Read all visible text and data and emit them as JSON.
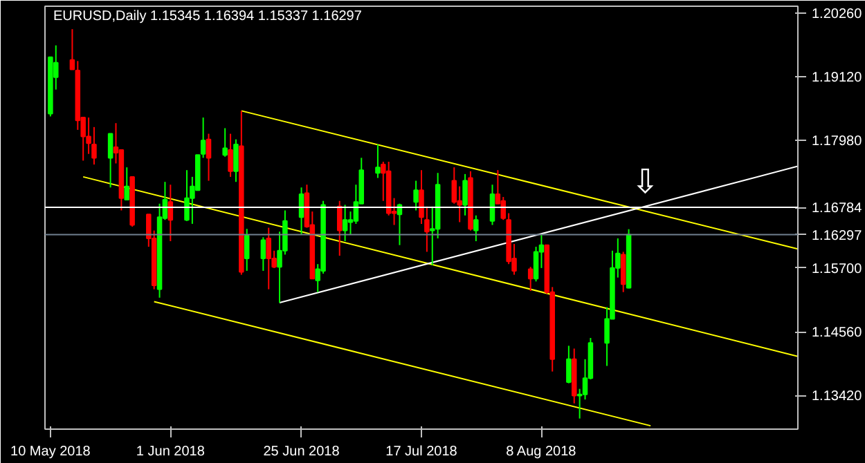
{
  "chart_data": {
    "type": "candlestick",
    "title": "EURUSD,Daily",
    "subtitle": "1.15345 1.16394 1.15337 1.16297",
    "x": [
      "2018-05-10",
      "2018-05-11",
      "2018-05-14",
      "2018-05-15",
      "2018-05-16",
      "2018-05-17",
      "2018-05-18",
      "2018-05-21",
      "2018-05-22",
      "2018-05-23",
      "2018-05-24",
      "2018-05-25",
      "2018-05-28",
      "2018-05-29",
      "2018-05-30",
      "2018-05-31",
      "2018-06-01",
      "2018-06-04",
      "2018-06-05",
      "2018-06-06",
      "2018-06-07",
      "2018-06-08",
      "2018-06-11",
      "2018-06-12",
      "2018-06-13",
      "2018-06-14",
      "2018-06-15",
      "2018-06-18",
      "2018-06-19",
      "2018-06-20",
      "2018-06-21",
      "2018-06-22",
      "2018-06-25",
      "2018-06-26",
      "2018-06-27",
      "2018-06-28",
      "2018-06-29",
      "2018-07-02",
      "2018-07-03",
      "2018-07-04",
      "2018-07-05",
      "2018-07-06",
      "2018-07-09",
      "2018-07-10",
      "2018-07-11",
      "2018-07-12",
      "2018-07-13",
      "2018-07-16",
      "2018-07-17",
      "2018-07-18",
      "2018-07-19",
      "2018-07-20",
      "2018-07-23",
      "2018-07-24",
      "2018-07-25",
      "2018-07-26",
      "2018-07-27",
      "2018-07-30",
      "2018-07-31",
      "2018-08-01",
      "2018-08-02",
      "2018-08-03",
      "2018-08-06",
      "2018-08-07",
      "2018-08-08",
      "2018-08-09",
      "2018-08-10",
      "2018-08-13",
      "2018-08-14",
      "2018-08-15",
      "2018-08-16",
      "2018-08-17",
      "2018-08-20",
      "2018-08-21",
      "2018-08-22",
      "2018-08-23",
      "2018-08-24"
    ],
    "ohlc": [
      [
        1.1846,
        1.1947,
        1.1841,
        1.1947
      ],
      [
        1.1911,
        1.1968,
        1.1889,
        1.1937
      ],
      [
        1.1942,
        1.1997,
        1.1925,
        1.1925
      ],
      [
        1.1923,
        1.194,
        1.1817,
        1.1834
      ],
      [
        1.1839,
        1.1839,
        1.1762,
        1.1805
      ],
      [
        1.1805,
        1.1839,
        1.1774,
        1.1793
      ],
      [
        1.1791,
        1.1822,
        1.1755,
        1.1767
      ],
      [
        1.1767,
        1.181,
        1.1714,
        1.181
      ],
      [
        1.1786,
        1.1829,
        1.1757,
        1.1776
      ],
      [
        1.1781,
        1.1781,
        1.1673,
        1.1695
      ],
      [
        1.1692,
        1.175,
        1.1692,
        1.1716
      ],
      [
        1.1733,
        1.1733,
        1.1644,
        1.1647
      ],
      [
        1.1666,
        1.1666,
        1.1608,
        1.1623
      ],
      [
        1.1623,
        1.1637,
        1.1532,
        1.1539
      ],
      [
        1.1532,
        1.1685,
        1.1517,
        1.1661
      ],
      [
        1.1659,
        1.1724,
        1.1656,
        1.1692
      ],
      [
        1.1688,
        1.1719,
        1.1618,
        1.1656
      ],
      [
        1.1656,
        1.1745,
        1.1654,
        1.1695
      ],
      [
        1.1695,
        1.1733,
        1.1649,
        1.1716
      ],
      [
        1.1709,
        1.1772,
        1.1709,
        1.1772
      ],
      [
        1.1774,
        1.1839,
        1.1767,
        1.1798
      ],
      [
        1.18,
        1.181,
        1.1726,
        1.1767
      ],
      [
        1.1772,
        1.182,
        1.1769,
        1.1784
      ],
      [
        1.1781,
        1.181,
        1.1733,
        1.1743
      ],
      [
        1.1743,
        1.18,
        1.1724,
        1.1791
      ],
      [
        1.1788,
        1.1851,
        1.1558,
        1.1563
      ],
      [
        1.1587,
        1.164,
        1.1565,
        1.1628
      ],
      [
        1.1587,
        1.1625,
        1.1565,
        1.162
      ],
      [
        1.1623,
        1.1642,
        1.1532,
        1.1587
      ],
      [
        1.1587,
        1.1601,
        1.157,
        1.1572
      ],
      [
        1.1572,
        1.1635,
        1.1508,
        1.1601
      ],
      [
        1.1601,
        1.1673,
        1.1594,
        1.1654
      ],
      [
        1.1661,
        1.1714,
        1.163,
        1.1702
      ],
      [
        1.1704,
        1.1719,
        1.1642,
        1.1644
      ],
      [
        1.1647,
        1.1671,
        1.1551,
        1.1551
      ],
      [
        1.1548,
        1.1577,
        1.1527,
        1.1568
      ],
      [
        1.1565,
        1.169,
        1.156,
        1.1683
      ],
      [
        1.168,
        1.169,
        1.1592,
        1.1637
      ],
      [
        1.1637,
        1.1683,
        1.1618,
        1.1656
      ],
      [
        1.1652,
        1.1671,
        1.163,
        1.1656
      ],
      [
        1.1654,
        1.1719,
        1.1649,
        1.1688
      ],
      [
        1.1685,
        1.1767,
        1.1685,
        1.1745
      ],
      [
        1.174,
        1.1791,
        1.1731,
        1.175
      ],
      [
        1.1755,
        1.176,
        1.169,
        1.174
      ],
      [
        1.1743,
        1.176,
        1.1664,
        1.1668
      ],
      [
        1.1671,
        1.1695,
        1.1647,
        1.1668
      ],
      [
        1.1666,
        1.1685,
        1.1611,
        1.1683
      ],
      [
        1.1688,
        1.1726,
        1.1673,
        1.1709
      ],
      [
        1.1709,
        1.1745,
        1.1649,
        1.1661
      ],
      [
        1.1656,
        1.168,
        1.1599,
        1.1635
      ],
      [
        1.1637,
        1.168,
        1.1575,
        1.164
      ],
      [
        1.164,
        1.174,
        1.1623,
        1.1719
      ],
      [
        1.1726,
        1.175,
        1.1685,
        1.1688
      ],
      [
        1.169,
        1.1716,
        1.1652,
        1.1683
      ],
      [
        1.1683,
        1.1738,
        1.1664,
        1.1726
      ],
      [
        1.1731,
        1.1743,
        1.1637,
        1.164
      ],
      [
        1.1637,
        1.1664,
        1.1618,
        1.1656
      ],
      [
        1.1654,
        1.1719,
        1.1647,
        1.1702
      ],
      [
        1.1702,
        1.1745,
        1.1685,
        1.1685
      ],
      [
        1.169,
        1.1697,
        1.1656,
        1.1659
      ],
      [
        1.1656,
        1.1668,
        1.1577,
        1.1582
      ],
      [
        1.1587,
        1.1613,
        1.1558,
        1.1565
      ],
      [
        1.1568,
        1.1572,
        1.1529,
        1.1551
      ],
      [
        1.1551,
        1.1608,
        1.1546,
        1.1599
      ],
      [
        1.1599,
        1.163,
        1.157,
        1.1611
      ],
      [
        1.1611,
        1.1611,
        1.1524,
        1.1527
      ],
      [
        1.1527,
        1.1536,
        1.1385,
        1.1407
      ],
      [
        1.1366,
        1.1431,
        1.1364,
        1.1407
      ],
      [
        1.1407,
        1.1426,
        1.1328,
        1.1342
      ],
      [
        1.1342,
        1.1354,
        1.1301,
        1.1344
      ],
      [
        1.1344,
        1.1407,
        1.1335,
        1.1373
      ],
      [
        1.1373,
        1.1445,
        1.1371,
        1.1436
      ],
      [
        1.1436,
        1.15,
        1.1395,
        1.1479
      ],
      [
        1.1479,
        1.1601,
        1.1479,
        1.157
      ],
      [
        1.157,
        1.1623,
        1.1553,
        1.1596
      ],
      [
        1.1594,
        1.1599,
        1.1527,
        1.1541
      ],
      [
        1.15345,
        1.16394,
        1.15337,
        1.16297
      ]
    ],
    "colors": [
      "#00ff00",
      "#00ff00",
      "#ff0000",
      "#ff0000",
      "#ff0000",
      "#ff0000",
      "#ff0000",
      "#00ff00",
      "#ff0000",
      "#ff0000",
      "#00ff00",
      "#ff0000",
      "#ff0000",
      "#ff0000",
      "#00ff00",
      "#00ff00",
      "#ff0000",
      "#00ff00",
      "#00ff00",
      "#00ff00",
      "#00ff00",
      "#ff0000",
      "#00ff00",
      "#ff0000",
      "#00ff00",
      "#ff0000",
      "#00ff00",
      "#00ff00",
      "#ff0000",
      "#ff0000",
      "#00ff00",
      "#00ff00",
      "#00ff00",
      "#ff0000",
      "#ff0000",
      "#00ff00",
      "#00ff00",
      "#ff0000",
      "#00ff00",
      "#00ff00",
      "#00ff00",
      "#00ff00",
      "#00ff00",
      "#ff0000",
      "#ff0000",
      "#ff0000",
      "#00ff00",
      "#00ff00",
      "#ff0000",
      "#ff0000",
      "#00ff00",
      "#00ff00",
      "#ff0000",
      "#ff0000",
      "#00ff00",
      "#ff0000",
      "#00ff00",
      "#00ff00",
      "#ff0000",
      "#ff0000",
      "#ff0000",
      "#ff0000",
      "#ff0000",
      "#00ff00",
      "#00ff00",
      "#ff0000",
      "#ff0000",
      "#00ff00",
      "#ff0000",
      "#00ff00",
      "#00ff00",
      "#00ff00",
      "#00ff00",
      "#00ff00",
      "#00ff00",
      "#ff0000",
      "#00ff00"
    ],
    "series": [
      {
        "type": "line",
        "color": "#ffff00",
        "x": [
          "2018-06-14",
          "2018-09-24"
        ],
        "values": [
          1.1851,
          1.1604
        ]
      },
      {
        "type": "line",
        "color": "#ffff00",
        "x": [
          "2018-05-16",
          "2018-09-24"
        ],
        "values": [
          1.1733,
          1.1412
        ]
      },
      {
        "type": "line",
        "color": "#ffff00",
        "x": [
          "2018-05-29",
          "2018-08-28"
        ],
        "values": [
          1.151,
          1.1288
        ]
      },
      {
        "type": "line",
        "color": "#ffffff",
        "x": [
          "2018-06-21",
          "2018-09-24"
        ],
        "values": [
          1.1508,
          1.1752
        ]
      }
    ],
    "xlim": [
      "2018-05-09",
      "2018-09-24"
    ],
    "xticks": [
      {
        "value": "2018-05-10",
        "label": "10 May 2018"
      },
      {
        "value": "2018-06-01",
        "label": "1 Jun 2018"
      },
      {
        "value": "2018-06-25",
        "label": "25 Jun 2018"
      },
      {
        "value": "2018-07-17",
        "label": "17 Jul 2018"
      },
      {
        "value": "2018-08-08",
        "label": "8 Aug 2018"
      }
    ],
    "ylim": [
      1.1282,
      1.2038
    ],
    "yticks": [
      {
        "value": 1.2026,
        "label": "1.20260"
      },
      {
        "value": 1.1912,
        "label": "1.19120"
      },
      {
        "value": 1.1798,
        "label": "1.17980"
      },
      {
        "value": 1.157,
        "label": "1.15700"
      },
      {
        "value": 1.1456,
        "label": "1.14560"
      },
      {
        "value": 1.1342,
        "label": "1.13420"
      }
    ],
    "ref_lines": [
      {
        "axis": "y",
        "value": 1.16784,
        "label": "1.16784",
        "color": "#ffffff"
      },
      {
        "axis": "y",
        "value": 1.16297,
        "label": "1.16297",
        "color": "#708090"
      }
    ],
    "annotations": [
      {
        "text": "⇩",
        "x": "2018-08-27",
        "y": 1.169
      }
    ],
    "grid": false
  }
}
